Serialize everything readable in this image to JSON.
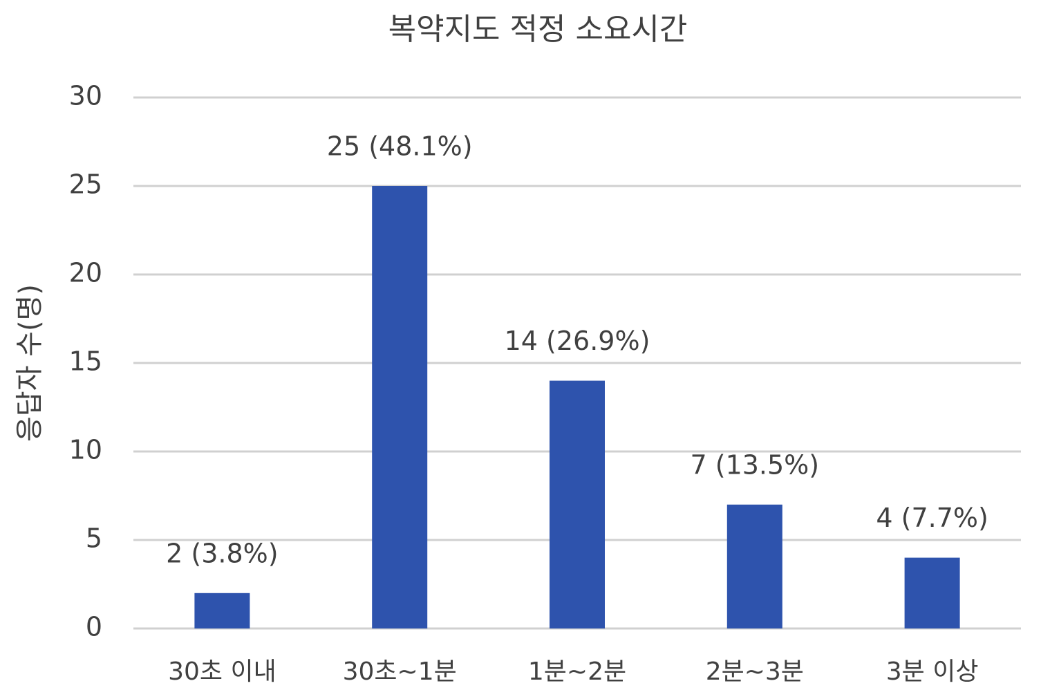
{
  "chart_data": {
    "type": "bar",
    "title": "복약지도 적정 소요시간",
    "y_label": "응답자 수(명)",
    "categories": [
      "30초 이내",
      "30초~1분",
      "1분~2분",
      "2분~3분",
      "3분 이상"
    ],
    "values": [
      2,
      25,
      14,
      7,
      4
    ],
    "value_labels": [
      "2 (3.8%)",
      "25 (48.1%)",
      "14 (26.9%)",
      "7 (13.5%)",
      "4 (7.7%)"
    ],
    "color": "#2e53ad",
    "ylim": [
      0,
      30
    ],
    "yticks": [
      0,
      5,
      10,
      15,
      20,
      25,
      30
    ],
    "grid": true
  }
}
